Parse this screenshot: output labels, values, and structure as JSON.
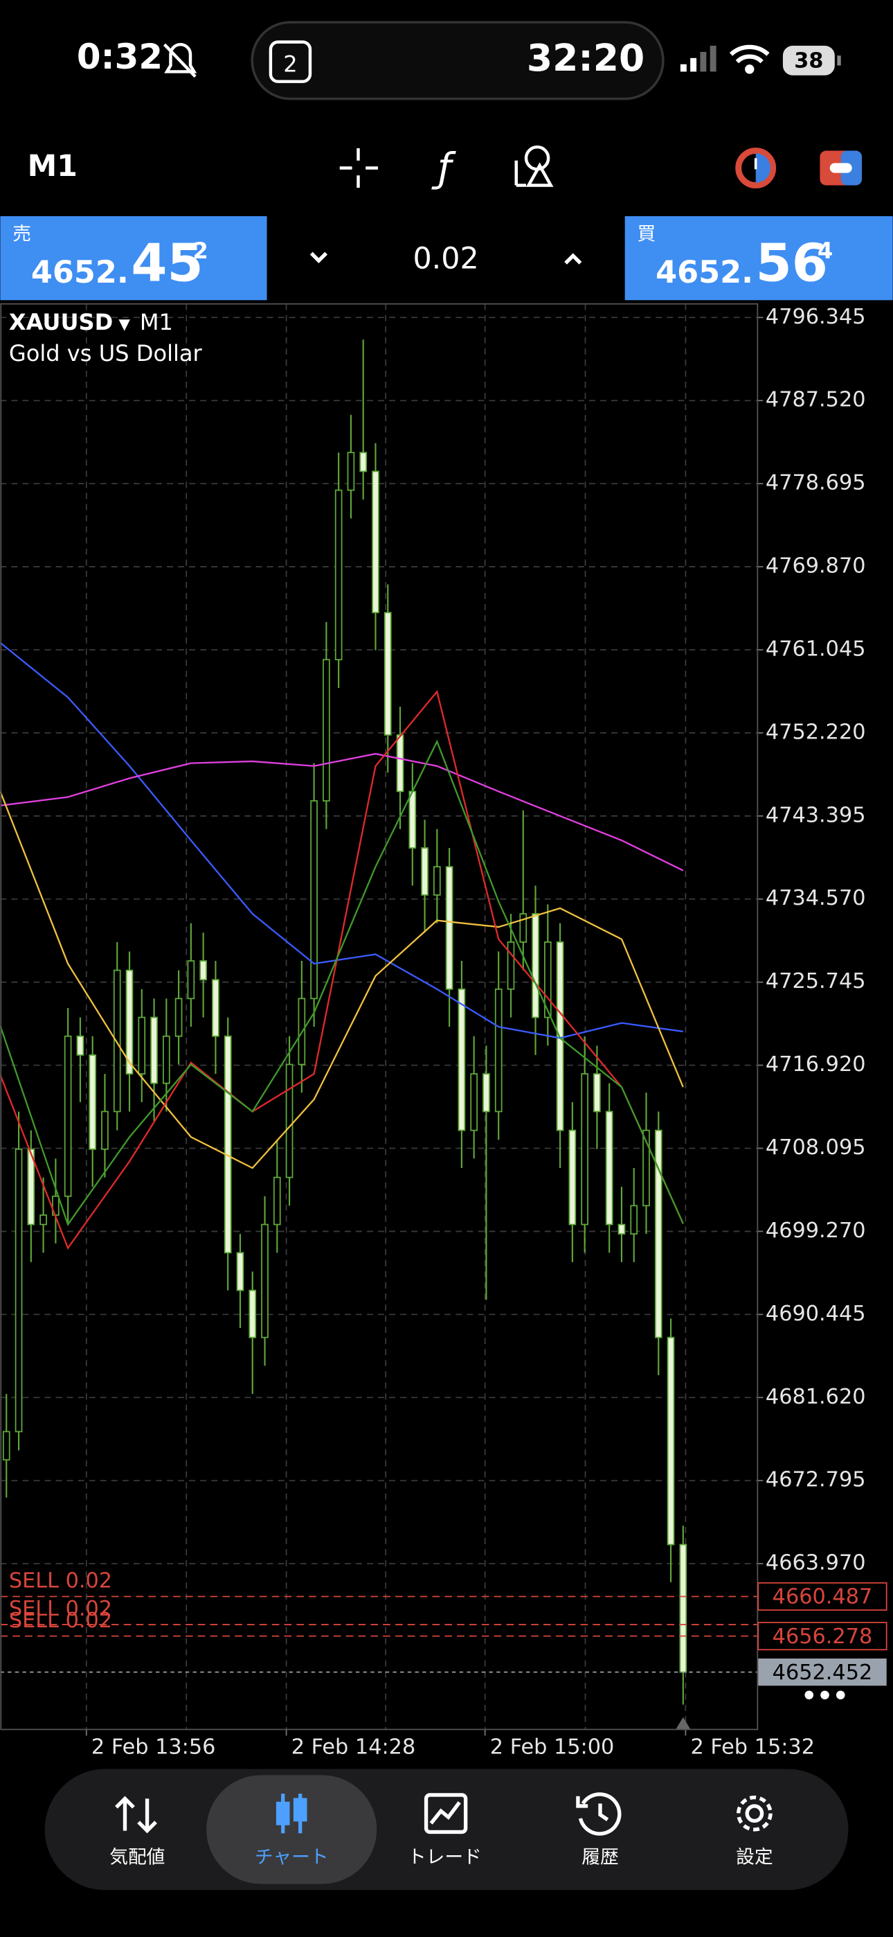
{
  "status_bar": {
    "time": "0:32",
    "calendar_day": "2",
    "timer": "32:20",
    "battery": "38"
  },
  "toolbar": {
    "timeframe": "M1"
  },
  "trade_panel": {
    "sell": {
      "label": "売",
      "price_prefix": "4652.",
      "price_main": "45",
      "price_sup": "2"
    },
    "volume": "0.02",
    "buy": {
      "label": "買",
      "price_prefix": "4652.",
      "price_main": "56",
      "price_sup": "4"
    }
  },
  "chart_data": {
    "type": "candlestick",
    "symbol": "XAUUSD",
    "timeframe": "M1",
    "title": "Gold vs US Dollar",
    "ylim": [
      4646.36,
      4797.79
    ],
    "yticks": [
      {
        "value": 4796.345,
        "label": "4796.345"
      },
      {
        "value": 4787.52,
        "label": "4787.520"
      },
      {
        "value": 4778.695,
        "label": "4778.695"
      },
      {
        "value": 4769.87,
        "label": "4769.870"
      },
      {
        "value": 4761.045,
        "label": "4761.045"
      },
      {
        "value": 4752.22,
        "label": "4752.220"
      },
      {
        "value": 4743.395,
        "label": "4743.395"
      },
      {
        "value": 4734.57,
        "label": "4734.570"
      },
      {
        "value": 4725.745,
        "label": "4725.745"
      },
      {
        "value": 4716.92,
        "label": "4716.920"
      },
      {
        "value": 4708.095,
        "label": "4708.095"
      },
      {
        "value": 4699.27,
        "label": "4699.270"
      },
      {
        "value": 4690.445,
        "label": "4690.445"
      },
      {
        "value": 4681.62,
        "label": "4681.620"
      },
      {
        "value": 4672.795,
        "label": "4672.795"
      },
      {
        "value": 4663.97,
        "label": "4663.970"
      }
    ],
    "xlim": [
      -0.5,
      61
    ],
    "xticks": [
      {
        "value": 6.5,
        "label": "2 Feb 13:56"
      },
      {
        "value": 22.75,
        "label": "2 Feb 14:28"
      },
      {
        "value": 38.9,
        "label": "2 Feb 15:00"
      },
      {
        "value": 55.2,
        "label": "2 Feb 15:32"
      }
    ],
    "grid": true,
    "candle_colors": {
      "up": "#000000",
      "down": "#e9f5d6",
      "outline": "#5fa83a"
    },
    "candles": [
      [
        4675,
        4682,
        4671,
        4678
      ],
      [
        4678,
        4712,
        4676,
        4708
      ],
      [
        4708,
        4710,
        4696,
        4700
      ],
      [
        4700,
        4705,
        4697,
        4701
      ],
      [
        4701,
        4707,
        4698,
        4703
      ],
      [
        4703,
        4723,
        4700,
        4720
      ],
      [
        4720,
        4722,
        4713,
        4718
      ],
      [
        4718,
        4720,
        4704,
        4708
      ],
      [
        4708,
        4716,
        4705,
        4712
      ],
      [
        4712,
        4730,
        4710,
        4727
      ],
      [
        4727,
        4729,
        4712,
        4716
      ],
      [
        4716,
        4725,
        4713,
        4722
      ],
      [
        4722,
        4724,
        4711,
        4715
      ],
      [
        4715,
        4724,
        4712,
        4720
      ],
      [
        4720,
        4727,
        4717,
        4724
      ],
      [
        4724,
        4732,
        4721,
        4728
      ],
      [
        4728,
        4731,
        4722,
        4726
      ],
      [
        4726,
        4728,
        4716,
        4720
      ],
      [
        4720,
        4722,
        4693,
        4697
      ],
      [
        4697,
        4699,
        4689,
        4693
      ],
      [
        4693,
        4695,
        4682,
        4688
      ],
      [
        4688,
        4703,
        4685,
        4700
      ],
      [
        4700,
        4709,
        4697,
        4705
      ],
      [
        4705,
        4720,
        4702,
        4717
      ],
      [
        4717,
        4728,
        4714,
        4724
      ],
      [
        4724,
        4749,
        4721,
        4745
      ],
      [
        4745,
        4764,
        4742,
        4760
      ],
      [
        4760,
        4782,
        4757,
        4778
      ],
      [
        4778,
        4786,
        4775,
        4782
      ],
      [
        4782,
        4794,
        4777,
        4780
      ],
      [
        4780,
        4783,
        4761,
        4765
      ],
      [
        4765,
        4768,
        4748,
        4752
      ],
      [
        4752,
        4755,
        4742,
        4746
      ],
      [
        4746,
        4749,
        4736,
        4740
      ],
      [
        4740,
        4743,
        4731,
        4735
      ],
      [
        4735,
        4742,
        4732,
        4738
      ],
      [
        4738,
        4740,
        4721,
        4725
      ],
      [
        4725,
        4728,
        4706,
        4710
      ],
      [
        4710,
        4720,
        4707,
        4716
      ],
      [
        4716,
        4719,
        4692,
        4712
      ],
      [
        4712,
        4729,
        4709,
        4725
      ],
      [
        4725,
        4733,
        4722,
        4730
      ],
      [
        4730,
        4744,
        4727,
        4733
      ],
      [
        4733,
        4736,
        4718,
        4722
      ],
      [
        4722,
        4734,
        4719,
        4730
      ],
      [
        4730,
        4732,
        4706,
        4710
      ],
      [
        4710,
        4713,
        4696,
        4700
      ],
      [
        4700,
        4720,
        4697,
        4716
      ],
      [
        4716,
        4719,
        4708,
        4712
      ],
      [
        4712,
        4715,
        4697,
        4700
      ],
      [
        4700,
        4704,
        4696,
        4699
      ],
      [
        4699,
        4706,
        4696,
        4702
      ],
      [
        4702,
        4714,
        4699,
        4710
      ],
      [
        4710,
        4712,
        4684,
        4688
      ],
      [
        4688,
        4690,
        4662,
        4666
      ],
      [
        4666,
        4668,
        4649,
        4652.45
      ]
    ],
    "moving_averages": [
      {
        "color": "#3b5bff",
        "x": [
          -0.5,
          5,
          10,
          15,
          20,
          25,
          30,
          35,
          40,
          45,
          50,
          55
        ],
        "values": [
          4761.8,
          4756,
          4748.7,
          4740.8,
          4733,
          4727.7,
          4728.7,
          4725,
          4721,
          4719.8,
          4721.4,
          4720.5
        ]
      },
      {
        "color": "#e040e0",
        "x": [
          -0.5,
          5,
          10,
          15,
          20,
          25,
          30,
          35,
          40,
          45,
          50,
          55
        ],
        "values": [
          4744.5,
          4745.4,
          4747.4,
          4749,
          4749.2,
          4748.7,
          4750,
          4748.7,
          4746,
          4743.4,
          4740.8,
          4737.6
        ]
      },
      {
        "color": "#f0c040",
        "x": [
          -0.5,
          5,
          10,
          15,
          20,
          25,
          30,
          35,
          40,
          45,
          50,
          55
        ],
        "values": [
          4746,
          4727.7,
          4717.2,
          4709.3,
          4706,
          4713.3,
          4726.4,
          4732.3,
          4731.6,
          4733.6,
          4730.3,
          4714.6
        ]
      },
      {
        "color": "#e02a2a",
        "x": [
          -0.5,
          5,
          10,
          15,
          20,
          25,
          30,
          35,
          40,
          45,
          50,
          55
        ],
        "values": [
          4715.9,
          4697.5,
          4706.7,
          4717.2,
          4712,
          4716,
          4748.7,
          4756.6,
          4730.3,
          4722.5,
          4714.6,
          4700.1
        ]
      },
      {
        "color": "#3f9a2a",
        "x": [
          -0.5,
          5,
          10,
          15,
          20,
          25,
          30,
          35,
          40,
          45,
          50,
          55
        ],
        "values": [
          4721.1,
          4700,
          4709.3,
          4717,
          4712,
          4722.5,
          4738,
          4751.3,
          4734.3,
          4719.8,
          4714.6,
          4700.1
        ]
      }
    ],
    "orders": [
      {
        "label": "SELL 0.02",
        "price": 4660.487,
        "color": "#d9453b"
      },
      {
        "label": "SELL 0.02",
        "price": 4657.5,
        "color": "#d9453b"
      },
      {
        "label": "SELL 0.02",
        "price": 4656.278,
        "color": "#d9453b"
      }
    ],
    "bid": {
      "price": 4652.452,
      "color": "#9aa3ad"
    }
  },
  "nav": {
    "items": [
      "気配値",
      "チャート",
      "トレード",
      "履歴",
      "設定"
    ]
  }
}
